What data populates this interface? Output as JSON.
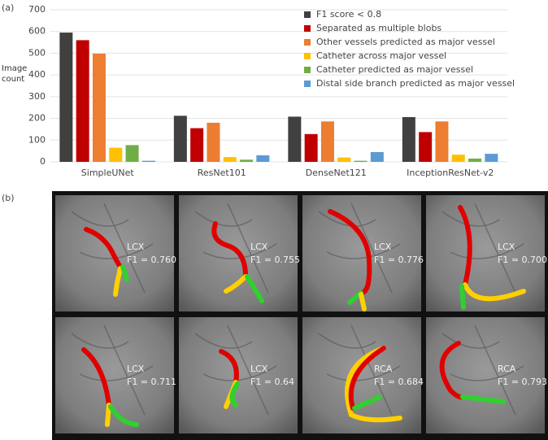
{
  "panel_labels": [
    "(a)",
    "(b)"
  ],
  "chart_data": {
    "type": "bar",
    "y_label": "Image count",
    "categories": [
      "SimpleUNet",
      "ResNet101",
      "DenseNet121",
      "InceptionResNet-v2"
    ],
    "series": [
      {
        "name": "F1 score < 0.8",
        "color": "#404040",
        "values": [
          595,
          212,
          208,
          206
        ]
      },
      {
        "name": "Separated as multiple blobs",
        "color": "#c00000",
        "values": [
          560,
          155,
          128,
          137
        ]
      },
      {
        "name": "Other vessels predicted as major vessel",
        "color": "#ed7d31",
        "values": [
          498,
          180,
          186,
          186
        ]
      },
      {
        "name": "Catheter across major vessel",
        "color": "#ffc000",
        "values": [
          65,
          22,
          20,
          33
        ]
      },
      {
        "name": "Catheter predicted as major vessel",
        "color": "#70ad47",
        "values": [
          77,
          10,
          5,
          15
        ]
      },
      {
        "name": "Distal side branch predicted as major vessel",
        "color": "#5b9bd5",
        "values": [
          5,
          30,
          45,
          37
        ]
      }
    ],
    "ylim": [
      0,
      700
    ],
    "yticks": [
      0,
      100,
      200,
      300,
      400,
      500,
      600,
      700
    ],
    "grid": true,
    "legend": "top-right"
  },
  "images": [
    {
      "vessel": "LCX",
      "score": "F1 = 0.760"
    },
    {
      "vessel": "LCX",
      "score": "F1 = 0.755"
    },
    {
      "vessel": "LCX",
      "score": "F1 = 0.776"
    },
    {
      "vessel": "LCX",
      "score": "F1 = 0.700"
    },
    {
      "vessel": "LCX",
      "score": "F1 = 0.711"
    },
    {
      "vessel": "LCX",
      "score": "F1 = 0.64"
    },
    {
      "vessel": "RCA",
      "score": "F1 = 0.684"
    },
    {
      "vessel": "RCA",
      "score": "F1 = 0.793"
    }
  ]
}
